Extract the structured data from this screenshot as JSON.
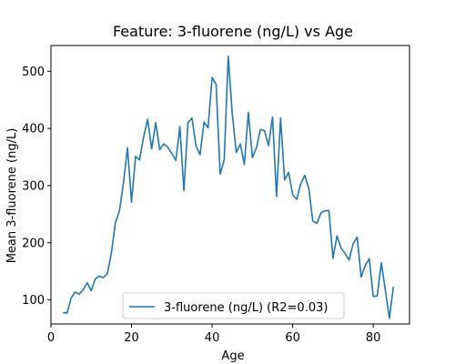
{
  "chart_data": {
    "type": "line",
    "title": "Feature: 3-fluorene (ng/L) vs Age",
    "xlabel": "Age",
    "ylabel": "Mean 3-fluorene (ng/L)",
    "xlim": [
      0,
      89
    ],
    "ylim": [
      58,
      545
    ],
    "x_ticks": [
      0,
      20,
      40,
      60,
      80
    ],
    "y_ticks": [
      100,
      200,
      300,
      400,
      500
    ],
    "grid": false,
    "legend_position": "lower-center",
    "series": [
      {
        "name": "3-fluorene (ng/L) (R2=0.03)",
        "color": "#1f77b4",
        "x": [
          3,
          4,
          5,
          6,
          7,
          8,
          9,
          10,
          11,
          12,
          13,
          14,
          15,
          16,
          17,
          18,
          19,
          20,
          21,
          22,
          23,
          24,
          25,
          26,
          27,
          28,
          29,
          30,
          31,
          32,
          33,
          34,
          35,
          36,
          37,
          38,
          39,
          40,
          41,
          42,
          43,
          44,
          45,
          46,
          47,
          48,
          49,
          50,
          51,
          52,
          53,
          54,
          55,
          56,
          57,
          58,
          59,
          60,
          61,
          62,
          63,
          64,
          65,
          66,
          67,
          68,
          69,
          70,
          71,
          72,
          73,
          74,
          75,
          76,
          77,
          78,
          79,
          80,
          81,
          82,
          83,
          84,
          85
        ],
        "y": [
          78,
          77,
          103,
          114,
          110,
          118,
          130,
          116,
          137,
          142,
          139,
          146,
          182,
          235,
          256,
          305,
          366,
          271,
          351,
          345,
          385,
          416,
          364,
          410,
          363,
          373,
          367,
          356,
          344,
          403,
          291,
          410,
          418,
          370,
          354,
          411,
          401,
          489,
          477,
          320,
          345,
          526,
          426,
          358,
          373,
          337,
          428,
          349,
          366,
          398,
          396,
          370,
          420,
          281,
          418,
          310,
          323,
          284,
          276,
          303,
          318,
          295,
          238,
          234,
          252,
          256,
          256,
          173,
          212,
          191,
          181,
          170,
          198,
          210,
          140,
          160,
          172,
          106,
          107,
          165,
          117,
          68,
          123
        ]
      }
    ]
  }
}
